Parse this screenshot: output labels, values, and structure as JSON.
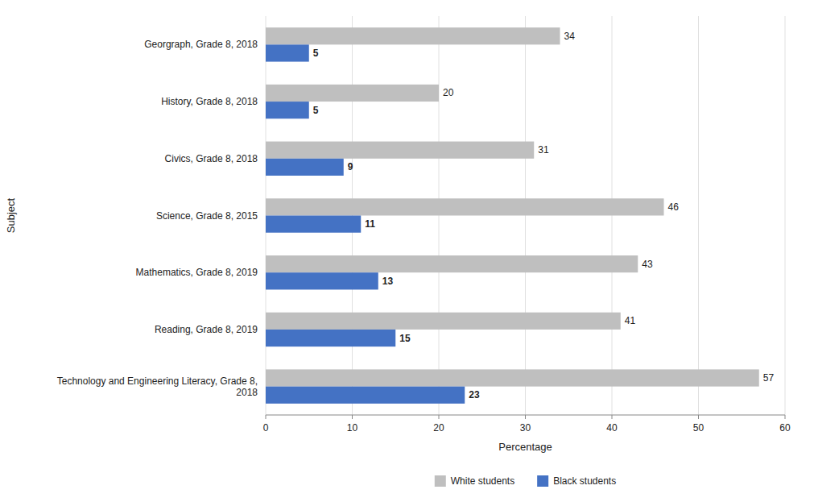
{
  "chart_data": {
    "type": "bar",
    "orientation": "horizontal",
    "categories": [
      "Technology and Engineering Literacy, Grade 8,\n2018",
      "Reading, Grade 8, 2019",
      "Mathematics, Grade 8, 2019",
      "Science, Grade 8, 2015",
      "Civics, Grade 8, 2018",
      "History, Grade 8, 2018",
      "Georgraph, Grade 8, 2018"
    ],
    "series": [
      {
        "name": "White students",
        "color": "#bfbfbf",
        "values": [
          57,
          41,
          43,
          46,
          31,
          20,
          34
        ]
      },
      {
        "name": "Black students",
        "color": "#4472c4",
        "values": [
          23,
          15,
          13,
          11,
          9,
          5,
          5
        ]
      }
    ],
    "xlabel": "Percentage",
    "ylabel": "Subject",
    "xlim": [
      0,
      60
    ],
    "xticks": [
      0,
      10,
      20,
      30,
      40,
      50,
      60
    ],
    "grid": true,
    "data_labels": true,
    "legend": "bottom"
  }
}
